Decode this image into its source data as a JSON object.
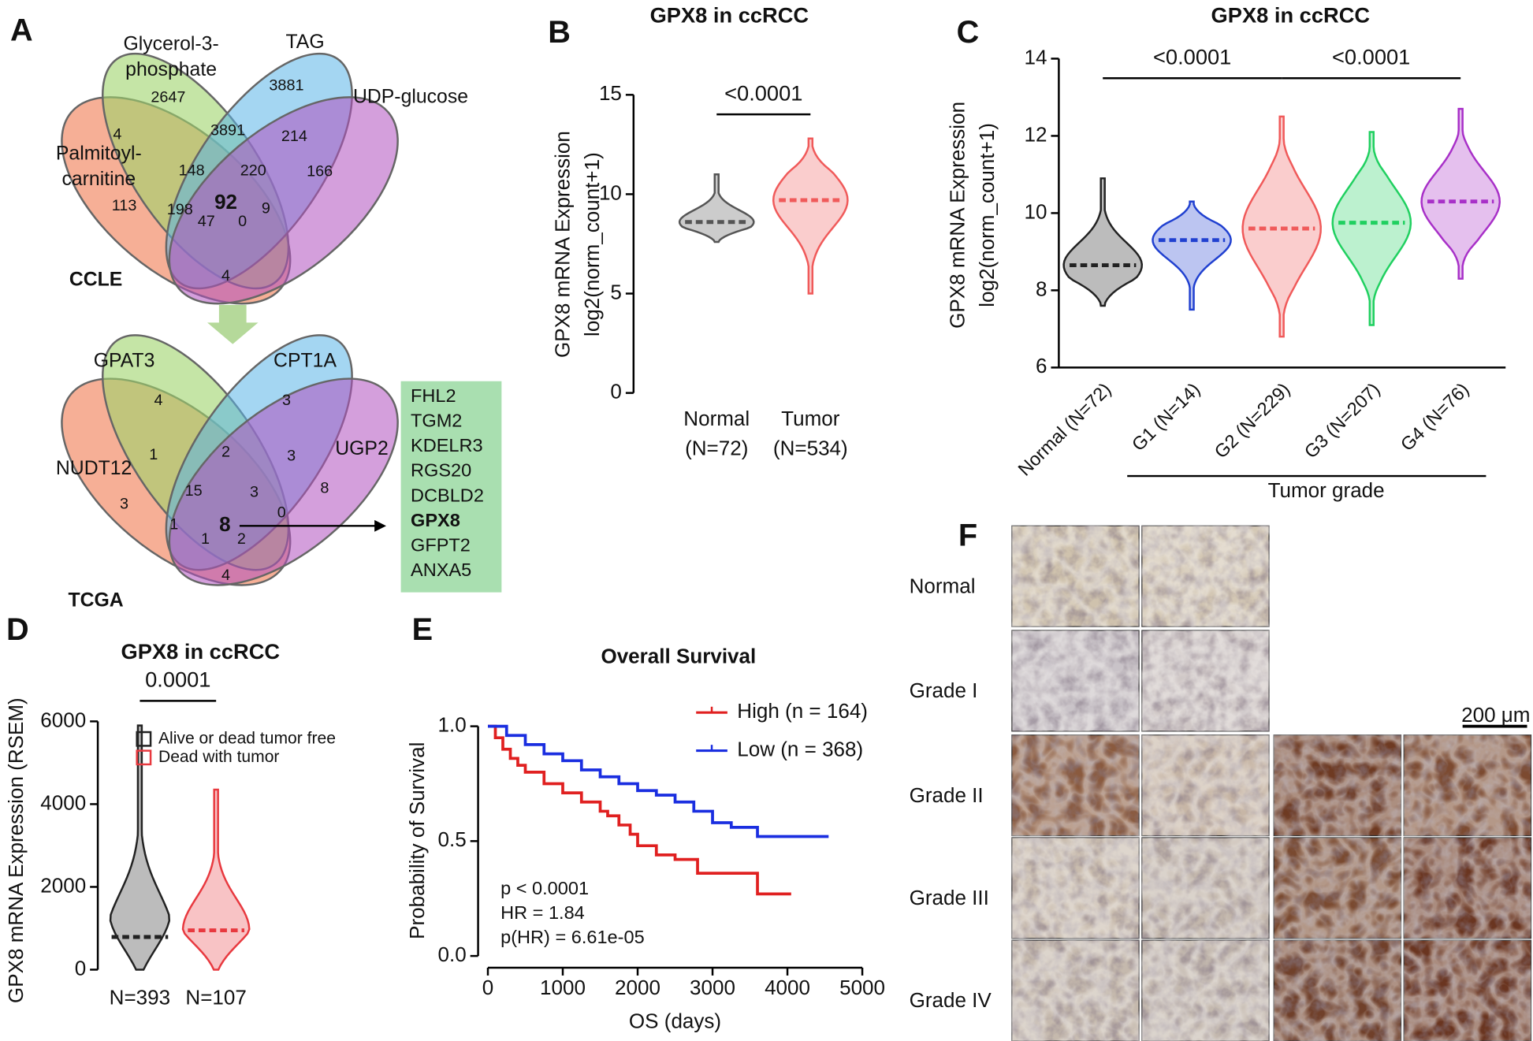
{
  "panel_letters": [
    "A",
    "B",
    "C",
    "D",
    "E",
    "F"
  ],
  "venn": [
    {
      "dataset": "CCLE",
      "sets": [
        [
          "Glycerol-3-",
          "phosphate"
        ],
        [
          "TAG"
        ],
        [
          "UDP-glucose"
        ],
        [
          "Palmitoyl-",
          "carnitine"
        ]
      ],
      "regions": [
        2647,
        3881,
        4,
        3891,
        214,
        166,
        148,
        220,
        113,
        198,
        92,
        9,
        47,
        0,
        4
      ]
    },
    {
      "dataset": "TCGA",
      "sets": [
        [
          "GPAT3"
        ],
        [
          "CPT1A"
        ],
        [
          "UGP2"
        ],
        [
          "NUDT12"
        ]
      ],
      "regions": [
        4,
        3,
        1,
        2,
        3,
        8,
        15,
        3,
        3,
        1,
        8,
        0,
        1,
        2,
        4
      ]
    }
  ],
  "gene_list": [
    {
      "name": "FHL2",
      "color": "#2f6b2f"
    },
    {
      "name": "TGM2",
      "color": "#2f6b2f"
    },
    {
      "name": "KDELR3",
      "color": "#2f6b2f"
    },
    {
      "name": "RGS20",
      "color": "#2f6b2f"
    },
    {
      "name": "DCBLD2",
      "color": "#2f6b2f"
    },
    {
      "name": "GPX8",
      "color": "#b5402c"
    },
    {
      "name": "GFPT2",
      "color": "#2f6b2f"
    },
    {
      "name": "ANXA5",
      "color": "#2f6b2f"
    }
  ],
  "chart_data": [
    {
      "type": "violin",
      "title": "GPX8 in ccRCC",
      "y_label": [
        "GPX8 mRNA Expression",
        "log2(norm_count+1)"
      ],
      "categories": [
        "Normal",
        "Tumor"
      ],
      "category_notes": [
        "(N=72)",
        "(N=534)"
      ],
      "colors": [
        "#555555",
        "#f05a5a"
      ],
      "medians": [
        8.6,
        9.7
      ],
      "mins": [
        7.6,
        5.0
      ],
      "maxs": [
        11.0,
        12.8
      ],
      "ylim": [
        0,
        15
      ],
      "yticks": [
        0,
        5,
        10,
        15
      ],
      "significance": [
        {
          "label": "<0.0001",
          "between": [
            0,
            1
          ]
        }
      ]
    },
    {
      "type": "violin",
      "title": "GPX8 in ccRCC",
      "y_label": [
        "GPX8 mRNA Expression",
        "log2(norm_count+1)"
      ],
      "categories": [
        "Normal (N=72)",
        "G1 (N=14)",
        "G2 (N=229)",
        "G3 (N=207)",
        "G4 (N=76)"
      ],
      "colors": [
        "#222222",
        "#2040d0",
        "#f05a5a",
        "#20d060",
        "#a830c8"
      ],
      "medians": [
        8.65,
        9.3,
        9.6,
        9.75,
        10.3
      ],
      "mins": [
        7.6,
        7.5,
        6.8,
        7.1,
        8.3
      ],
      "maxs": [
        10.9,
        10.3,
        12.5,
        12.1,
        12.7
      ],
      "ylim": [
        6,
        14
      ],
      "yticks": [
        6,
        8,
        10,
        12,
        14
      ],
      "significance": [
        {
          "label": "<0.0001",
          "between": [
            0,
            2
          ]
        },
        {
          "label": "<0.0001",
          "between": [
            2,
            4
          ]
        }
      ],
      "group_label": {
        "text": "Tumor grade",
        "between": [
          1,
          4
        ]
      }
    },
    {
      "type": "violin",
      "title": "GPX8 in ccRCC",
      "y_label": [
        "GPX8 mRNA Expression (RSEM)"
      ],
      "categories": [
        "N=393",
        "N=107"
      ],
      "series": [
        {
          "name": "Alive or dead tumor free",
          "color": "#222222"
        },
        {
          "name": "Dead with tumor",
          "color": "#e8393f"
        }
      ],
      "medians": [
        790,
        950
      ],
      "mins": [
        0,
        0
      ],
      "maxs": [
        5900,
        4350
      ],
      "ylim": [
        0,
        6000
      ],
      "yticks": [
        0,
        2000,
        4000,
        6000
      ],
      "significance": [
        {
          "label": "0.0001",
          "between": [
            0,
            1
          ]
        }
      ],
      "legend": "top-left"
    },
    {
      "type": "line",
      "step": true,
      "title": "Overall Survival",
      "x_label": "OS (days)",
      "y_label": "Probability of Survival",
      "xlim": [
        0,
        5000
      ],
      "xticks": [
        0,
        1000,
        2000,
        3000,
        4000,
        5000
      ],
      "ylim": [
        0,
        1.0
      ],
      "yticks": [
        {
          "value": 0,
          "label": "0.0"
        },
        {
          "value": 0.5,
          "label": "0.5"
        },
        {
          "value": 1.0,
          "label": "1.0"
        }
      ],
      "series": [
        {
          "name": "High (n = 164)",
          "color": "#e02020",
          "x": [
            0,
            100,
            200,
            300,
            400,
            500,
            750,
            1000,
            1250,
            1500,
            1600,
            1750,
            1900,
            2000,
            2250,
            2500,
            2800,
            3000,
            3500,
            3600,
            4000,
            4050
          ],
          "values": [
            1.0,
            0.95,
            0.9,
            0.86,
            0.83,
            0.8,
            0.75,
            0.71,
            0.67,
            0.63,
            0.61,
            0.57,
            0.53,
            0.48,
            0.44,
            0.42,
            0.36,
            0.36,
            0.36,
            0.27,
            0.27,
            0.27
          ]
        },
        {
          "name": "Low (n = 368)",
          "color": "#1a2ee0",
          "x": [
            0,
            250,
            500,
            750,
            1000,
            1250,
            1500,
            1750,
            2000,
            2250,
            2500,
            2750,
            3000,
            3250,
            3500,
            3600,
            4000,
            4550
          ],
          "values": [
            1.0,
            0.96,
            0.92,
            0.88,
            0.85,
            0.81,
            0.78,
            0.75,
            0.72,
            0.7,
            0.67,
            0.63,
            0.58,
            0.56,
            0.56,
            0.52,
            0.52,
            0.52
          ]
        }
      ],
      "stats": [
        "p < 0.0001",
        "HR = 1.84",
        "p(HR) =  6.61e-05"
      ],
      "legend": "top-right"
    }
  ],
  "ihc": {
    "rows": [
      "Normal",
      "Grade I",
      "Grade II",
      "Grade III",
      "Grade IV"
    ],
    "scale_bar": "200 μm"
  }
}
